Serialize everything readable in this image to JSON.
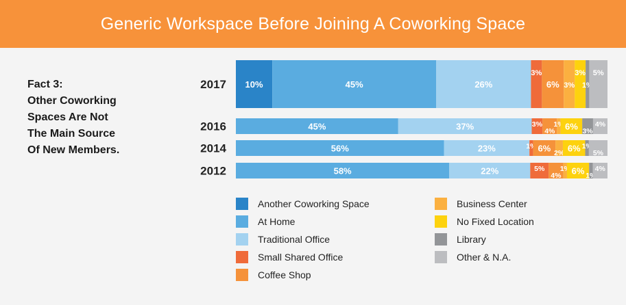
{
  "header": {
    "title": "Generic Workspace Before Joining A Coworking Space"
  },
  "fact": {
    "lines": [
      "Fact 3:",
      "Other Coworking",
      "Spaces Are Not",
      "The Main Source",
      "Of New Members."
    ]
  },
  "chart_data": {
    "type": "bar",
    "orientation": "horizontal",
    "stacked": true,
    "categories": [
      "2017",
      "2016",
      "2014",
      "2012"
    ],
    "series": [
      {
        "name": "Another Coworking Space",
        "color": "#2a84c8",
        "values": [
          10,
          0,
          0,
          0
        ],
        "labels": [
          "10%",
          "",
          "",
          ""
        ]
      },
      {
        "name": "At Home",
        "color": "#5aace0",
        "values": [
          45,
          45,
          56,
          58
        ],
        "labels": [
          "45%",
          "45%",
          "56%",
          "58%"
        ]
      },
      {
        "name": "Traditional Office",
        "color": "#a3d2f0",
        "values": [
          26,
          37,
          23,
          22
        ],
        "labels": [
          "26%",
          "37%",
          "23%",
          "22%"
        ]
      },
      {
        "name": "Small Shared Office",
        "color": "#ef6b3a",
        "values": [
          3,
          3,
          1,
          5
        ],
        "labels": [
          "3%",
          "3%",
          "1%",
          "5%"
        ]
      },
      {
        "name": "Coffee Shop",
        "color": "#f5923a",
        "values": [
          6,
          4,
          6,
          4
        ],
        "labels": [
          "6%",
          "4%",
          "6%",
          "4%"
        ]
      },
      {
        "name": "Business Center",
        "color": "#fbb040",
        "values": [
          3,
          1,
          2,
          1
        ],
        "labels": [
          "3%",
          "1%",
          "2%",
          "1%"
        ]
      },
      {
        "name": "No Fixed Location",
        "color": "#fdd20e",
        "values": [
          3,
          6,
          6,
          6
        ],
        "labels": [
          "3%",
          "6%",
          "6%",
          "6%"
        ]
      },
      {
        "name": "Library",
        "color": "#939598",
        "values": [
          1,
          3,
          1,
          1
        ],
        "labels": [
          "1%",
          "3%",
          "1%",
          "1%"
        ]
      },
      {
        "name": "Other & N.A.",
        "color": "#bcbdc0",
        "values": [
          5,
          4,
          5,
          4
        ],
        "labels": [
          "5%",
          "4%",
          "5%",
          "4%"
        ]
      }
    ],
    "xlim": [
      0,
      100
    ],
    "legend_position": "bottom"
  }
}
